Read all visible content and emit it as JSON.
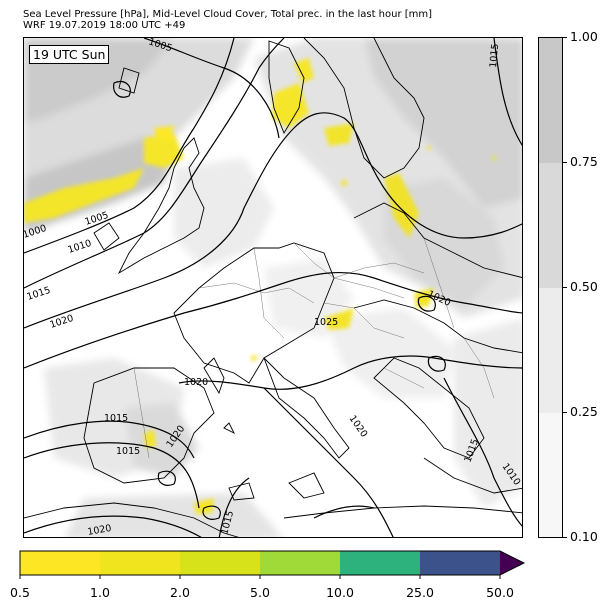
{
  "title": {
    "line1": "Sea Level Pressure [hPa], Mid-Level Cloud Cover, Total prec. in the last hour [mm]",
    "line2": "WRF 19.07.2019 18:00 UTC +49"
  },
  "valid_time_label": "19 UTC Sun",
  "isobar_labels": [
    "1005",
    "1015",
    "1000",
    "1005",
    "1010",
    "1015",
    "1020",
    "1020",
    "1025",
    "1020",
    "1015",
    "1015",
    "1020",
    "1020",
    "1015",
    "1010",
    "1020",
    "1015"
  ],
  "cloud_colorbar": {
    "ticks": [
      "1.00",
      "0.75",
      "0.50",
      "0.25",
      "0.10"
    ],
    "colors": [
      "#c8c8c8",
      "#d9d9d9",
      "#ececec",
      "#f7f7f7"
    ]
  },
  "precip_colorbar": {
    "ticks": [
      "0.5",
      "1.0",
      "2.0",
      "5.0",
      "10.0",
      "25.0",
      "50.0"
    ],
    "colors": [
      "#fde725",
      "#f0e41f",
      "#d7e21a",
      "#a0da39",
      "#2db27d",
      "#3b528b",
      "#440154"
    ]
  }
}
